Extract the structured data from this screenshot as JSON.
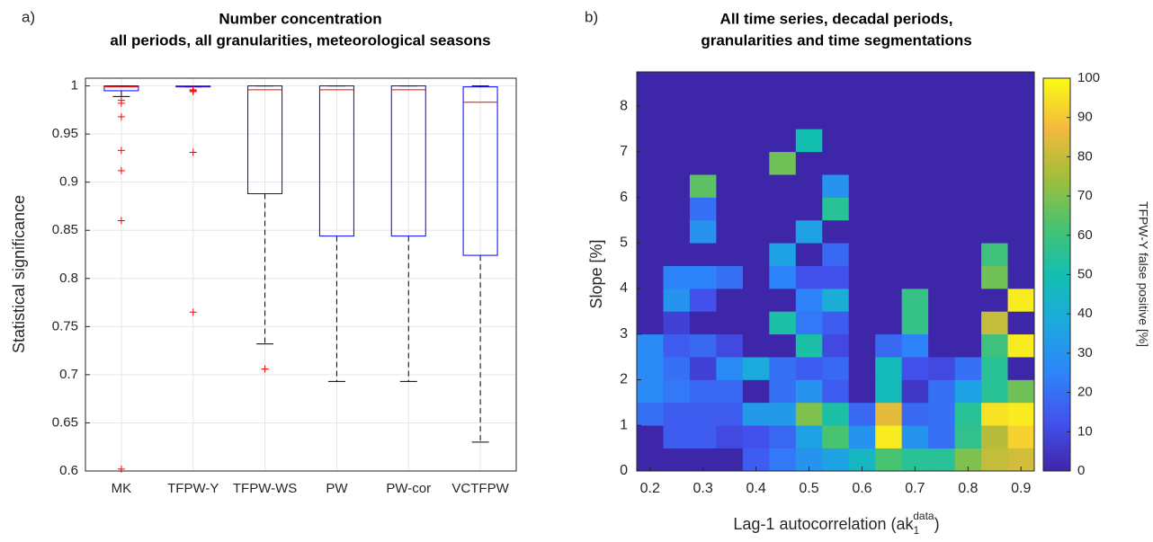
{
  "chart_data": [
    {
      "type": "box",
      "panel": "a)",
      "title": [
        "Number concentration",
        "all periods, all granularities, meteorological seasons"
      ],
      "ylabel": "Statistical significance",
      "categories": [
        "MK",
        "TFPW-Y",
        "TFPW-WS",
        "PW",
        "PW-cor",
        "VCTFPW"
      ],
      "boxes": [
        {
          "whisker_low": 0.989,
          "q1": 0.995,
          "median": 0.999,
          "q3": 1,
          "whisker_high": 1,
          "outliers": [
            0.985,
            0.982,
            0.968,
            0.933,
            0.912,
            0.86,
            0.602
          ]
        },
        {
          "whisker_low": 0.999,
          "q1": 0.999,
          "median": 1,
          "q3": 1,
          "whisker_high": 1,
          "outliers": [
            0.996,
            0.995,
            0.994,
            0.931,
            0.765
          ]
        },
        {
          "whisker_low": 0.732,
          "q1": 0.888,
          "median": 0.996,
          "q3": 1,
          "whisker_high": 1,
          "outliers": [
            0.706
          ]
        },
        {
          "whisker_low": 0.693,
          "q1": 0.844,
          "median": 0.996,
          "q3": 1,
          "whisker_high": 1,
          "outliers": []
        },
        {
          "whisker_low": 0.693,
          "q1": 0.844,
          "median": 0.996,
          "q3": 1,
          "whisker_high": 1,
          "outliers": []
        },
        {
          "whisker_low": 0.63,
          "q1": 0.824,
          "median": 0.983,
          "q3": 0.999,
          "whisker_high": 1,
          "outliers": []
        }
      ],
      "box_color": "#0000ff",
      "median_color": "#ff0000",
      "whisker_color": "#000000",
      "outlier_color": "#ff0000",
      "ylim": [
        0.6,
        1.008
      ],
      "yticks": [
        0.6,
        0.65,
        0.7,
        0.75,
        0.8,
        0.85,
        0.9,
        0.95,
        1
      ],
      "grid": true
    },
    {
      "type": "heatmap",
      "panel": "b)",
      "title": [
        "All time series, decadal periods,",
        "granularities and time segmentations"
      ],
      "xlabel": {
        "text": "Lag-1 autocorrelation (ak",
        "sub": "1",
        "sup": "data",
        "end": ")"
      },
      "ylabel": "Slope [%]",
      "colorbar_label": "TFPW-Y false positive [%]",
      "x": [
        0.2,
        0.25,
        0.3,
        0.35,
        0.4,
        0.45,
        0.5,
        0.55,
        0.6,
        0.65,
        0.7,
        0.75,
        0.8,
        0.85,
        0.9
      ],
      "y": [
        0.25,
        0.75,
        1.25,
        1.75,
        2.25,
        2.75,
        3.25,
        3.75,
        4.25,
        4.75,
        5.25,
        5.75,
        6.25,
        6.75,
        7.25,
        7.75,
        8.25
      ],
      "z": [
        [
          0,
          0,
          0,
          0,
          15,
          22,
          30,
          35,
          45,
          62,
          55,
          55,
          70,
          80,
          82
        ],
        [
          0,
          15,
          15,
          10,
          12,
          18,
          35,
          62,
          30,
          97,
          30,
          20,
          57,
          78,
          92
        ],
        [
          20,
          15,
          15,
          15,
          32,
          32,
          70,
          52,
          18,
          85,
          18,
          20,
          55,
          95,
          97
        ],
        [
          27,
          22,
          18,
          18,
          0,
          20,
          30,
          15,
          0,
          47,
          5,
          20,
          35,
          55,
          68
        ],
        [
          27,
          20,
          8,
          27,
          38,
          20,
          15,
          18,
          0,
          47,
          12,
          10,
          20,
          55,
          0
        ],
        [
          27,
          15,
          18,
          10,
          0,
          0,
          52,
          10,
          0,
          18,
          25,
          0,
          0,
          60,
          97
        ],
        [
          0,
          8,
          0,
          0,
          0,
          52,
          22,
          15,
          0,
          0,
          58,
          0,
          0,
          80,
          0
        ],
        [
          0,
          30,
          12,
          0,
          0,
          0,
          25,
          40,
          0,
          0,
          58,
          0,
          0,
          0,
          97
        ],
        [
          0,
          25,
          25,
          20,
          0,
          25,
          12,
          12,
          0,
          0,
          0,
          0,
          0,
          68,
          0
        ],
        [
          0,
          0,
          0,
          0,
          0,
          35,
          0,
          18,
          0,
          0,
          0,
          0,
          0,
          60,
          0
        ],
        [
          0,
          0,
          30,
          0,
          0,
          0,
          35,
          0,
          0,
          0,
          0,
          0,
          0,
          0,
          0
        ],
        [
          0,
          0,
          20,
          0,
          0,
          0,
          0,
          55,
          0,
          0,
          0,
          0,
          0,
          0,
          0
        ],
        [
          0,
          0,
          65,
          0,
          0,
          0,
          0,
          30,
          0,
          0,
          0,
          0,
          0,
          0,
          0
        ],
        [
          0,
          0,
          0,
          0,
          0,
          68,
          0,
          0,
          0,
          0,
          0,
          0,
          0,
          0,
          0
        ],
        [
          0,
          0,
          0,
          0,
          0,
          0,
          50,
          0,
          0,
          0,
          0,
          0,
          0,
          0,
          0
        ],
        [
          0,
          0,
          0,
          0,
          0,
          0,
          0,
          0,
          0,
          0,
          0,
          0,
          0,
          0,
          0
        ],
        [
          0,
          0,
          0,
          0,
          0,
          0,
          0,
          0,
          0,
          0,
          0,
          0,
          0,
          0,
          0
        ]
      ],
      "xlim": [
        0.175,
        0.925
      ],
      "ylim": [
        0,
        8.75
      ],
      "xticks": [
        0.2,
        0.3,
        0.4,
        0.5,
        0.6,
        0.7,
        0.8,
        0.9
      ],
      "yticks": [
        0,
        1,
        2,
        3,
        4,
        5,
        6,
        7,
        8
      ],
      "clim": [
        0,
        100
      ],
      "cticks": [
        0,
        10,
        20,
        30,
        40,
        50,
        60,
        70,
        80,
        90,
        100
      ],
      "colormap": [
        "#3e26a8",
        "#4352ee",
        "#2d84fa",
        "#1ca9de",
        "#13bfb0",
        "#4ac36f",
        "#a3be3a",
        "#f5ba3d",
        "#f9fb15"
      ]
    }
  ]
}
